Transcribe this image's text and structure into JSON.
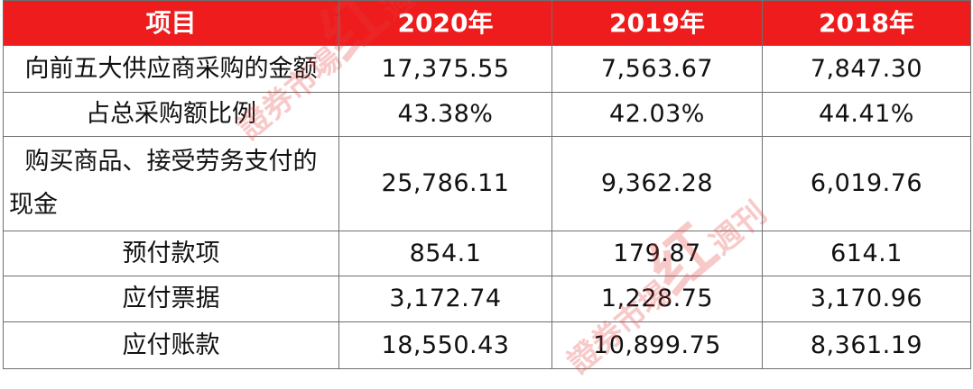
{
  "table": {
    "headers": [
      "项目",
      "2020年",
      "2019年",
      "2018年"
    ],
    "rows": [
      {
        "item": "向前五大供应商采购的金额",
        "y2020": "17,375.55",
        "y2019": "7,563.67",
        "y2018": "7,847.30"
      },
      {
        "item": "占总采购额比例",
        "y2020": "43.38%",
        "y2019": "42.03%",
        "y2018": "44.41%"
      },
      {
        "item_line1": "购买商品、接受劳务支付的",
        "item_line2": "现金",
        "y2020": "25,786.11",
        "y2019": "9,362.28",
        "y2018": "6,019.76"
      },
      {
        "item": "预付款项",
        "y2020": "854.1",
        "y2019": "179.87",
        "y2018": "614.1"
      },
      {
        "item": "应付票据",
        "y2020": "3,172.74",
        "y2019": "1,228.75",
        "y2018": "3,170.96"
      },
      {
        "item": "应付账款",
        "y2020": "18,550.43",
        "y2019": "10,899.75",
        "y2018": "8,361.19"
      }
    ]
  },
  "watermark": {
    "text_main": "證券市場",
    "text_big": "红",
    "text_tail": "週刊"
  },
  "colors": {
    "header_bg": "#ee1c1c",
    "header_text": "#ffffff",
    "border": "#6f6f6f",
    "watermark": "#e63c3c"
  }
}
